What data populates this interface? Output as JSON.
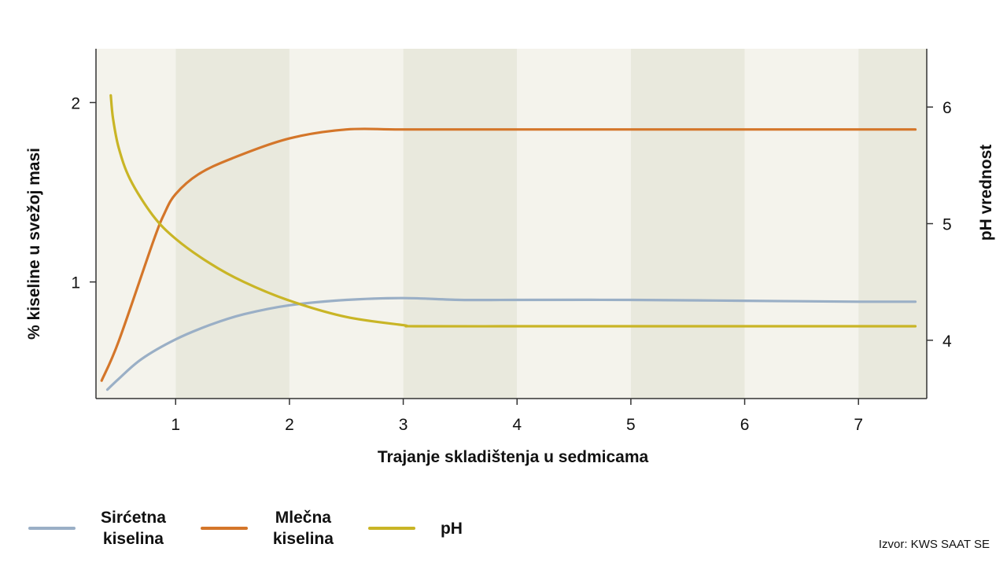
{
  "chart_data": {
    "type": "line",
    "xlabel": "Trajanje skladištenja u sedmicama",
    "ylabel_left": "% kiseline u svežoj masi",
    "ylabel_right": "pH vrednost",
    "xlim": [
      0.3,
      7.6
    ],
    "ylim_left": [
      0.35,
      2.3
    ],
    "ylim_right": [
      3.5,
      6.5
    ],
    "xticks": [
      1,
      2,
      3,
      4,
      5,
      6,
      7
    ],
    "yticks_left": [
      1,
      2
    ],
    "yticks_right": [
      4,
      5,
      6
    ],
    "background_bands": "alternating weekly bands",
    "series": [
      {
        "name": "Sirćetna\nkiselina",
        "axis": "left",
        "color": "#9aafc6",
        "x": [
          0.4,
          0.5,
          0.7,
          1.0,
          1.3,
          1.6,
          2.0,
          2.5,
          3.0,
          3.5,
          4.0,
          5.0,
          6.0,
          7.0,
          7.5
        ],
        "y": [
          0.4,
          0.46,
          0.57,
          0.68,
          0.76,
          0.82,
          0.87,
          0.9,
          0.91,
          0.9,
          0.9,
          0.9,
          0.895,
          0.89,
          0.89
        ]
      },
      {
        "name": "Mlečna\nkiselina",
        "axis": "left",
        "color": "#d4762a",
        "x": [
          0.35,
          0.5,
          0.8,
          0.9,
          1.0,
          1.2,
          1.5,
          2.0,
          2.5,
          3.0,
          4.0,
          5.0,
          6.0,
          7.0,
          7.5
        ],
        "y": [
          0.45,
          0.67,
          1.22,
          1.38,
          1.49,
          1.6,
          1.69,
          1.8,
          1.85,
          1.85,
          1.85,
          1.85,
          1.85,
          1.85,
          1.85
        ]
      },
      {
        "name": "pH",
        "axis": "right",
        "color": "#c9b526",
        "x": [
          0.43,
          0.45,
          0.5,
          0.6,
          0.8,
          1.0,
          1.3,
          1.6,
          2.0,
          2.5,
          3.0,
          3.1,
          4.0,
          5.0,
          6.0,
          7.0,
          7.5
        ],
        "y": [
          6.1,
          5.9,
          5.65,
          5.38,
          5.07,
          4.87,
          4.66,
          4.5,
          4.34,
          4.2,
          4.13,
          4.12,
          4.12,
          4.12,
          4.12,
          4.12,
          4.12
        ]
      }
    ]
  },
  "legend": [
    {
      "label": "Sirćetna\nkiselina",
      "color": "#9aafc6"
    },
    {
      "label": "Mlečna\nkiselina",
      "color": "#d4762a"
    },
    {
      "label": "pH",
      "color": "#c9b526"
    }
  ],
  "source": "Izvor: KWS SAAT SE",
  "colors": {
    "band_light": "#f4f3ec",
    "band_dark": "#e9e9dd",
    "axis": "#333333"
  }
}
